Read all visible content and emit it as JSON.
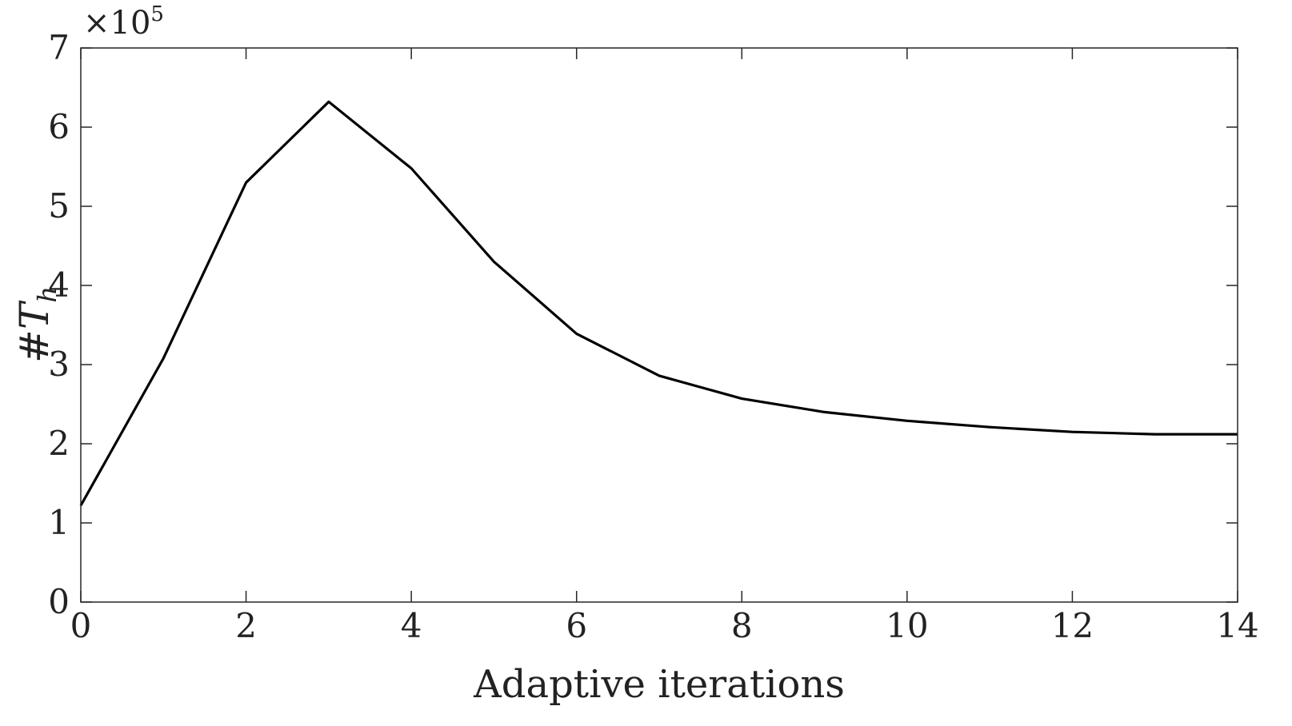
{
  "chart_data": {
    "type": "line",
    "title": "",
    "xlabel": "Adaptive iterations",
    "ylabel": {
      "prefix": "#",
      "symbol": "T",
      "subscript": "h"
    },
    "y_multiplier": {
      "base": "×10",
      "exponent": "5"
    },
    "xlim": [
      0,
      14
    ],
    "ylim": [
      0,
      7
    ],
    "x_ticks": [
      0,
      2,
      4,
      6,
      8,
      10,
      12,
      14
    ],
    "y_ticks": [
      0,
      1,
      2,
      3,
      4,
      5,
      6,
      7
    ],
    "grid": false,
    "line_color": "#000000",
    "series": [
      {
        "x": [
          0,
          1,
          2,
          3,
          4,
          5,
          6,
          7,
          8,
          9,
          10,
          11,
          12,
          13,
          14
        ],
        "y": [
          1.22,
          3.08,
          5.3,
          6.32,
          5.48,
          4.3,
          3.39,
          2.86,
          2.57,
          2.4,
          2.29,
          2.21,
          2.15,
          2.12,
          2.12
        ]
      }
    ]
  }
}
